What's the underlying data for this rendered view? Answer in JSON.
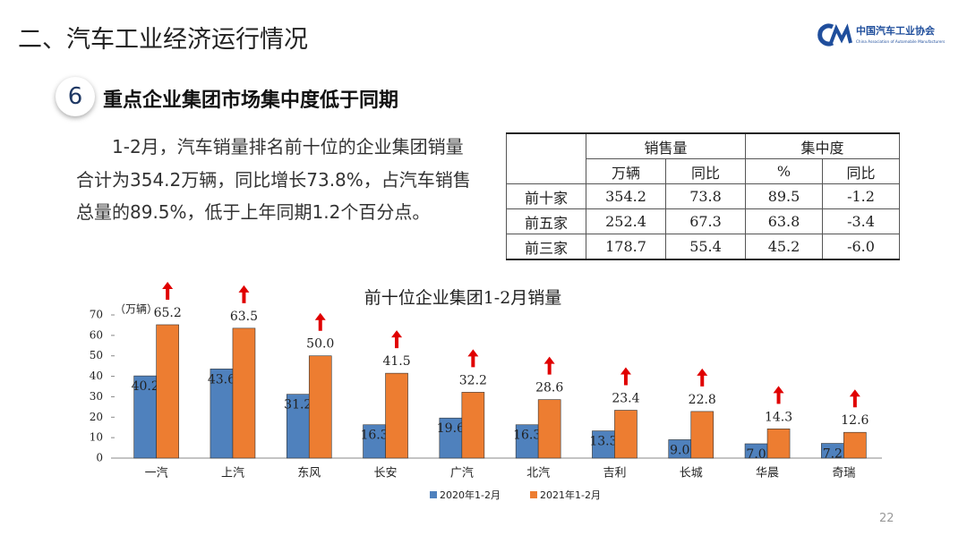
{
  "header": {
    "title": "二、汽车工业经济运行情况",
    "logo_name": "中国汽车工业协会",
    "logo_english": "China Association of Automobile Manufacturers"
  },
  "section": {
    "number": "6",
    "title": "重点企业集团市场集中度低于同期"
  },
  "paragraph": "1-2月，汽车销量排名前十位的企业集团销量合计为354.2万辆，同比增长73.8%，占汽车销售总量的89.5%，低于上年同期1.2个百分点。",
  "table": {
    "groups": [
      "销售量",
      "集中度"
    ],
    "subheaders": [
      "万辆",
      "同比",
      "%",
      "同比"
    ],
    "rows": [
      [
        "前十家",
        "354.2",
        "73.8",
        "89.5",
        "-1.2"
      ],
      [
        "前五家",
        "252.4",
        "67.3",
        "63.8",
        "-3.4"
      ],
      [
        "前三家",
        "178.7",
        "55.4",
        "45.2",
        "-6.0"
      ]
    ]
  },
  "chart_data": {
    "type": "bar",
    "title": "前十位企业集团1-2月销量",
    "y_label": "（万辆）",
    "categories": [
      "一汽",
      "上汽",
      "东风",
      "长安",
      "广汽",
      "北汽",
      "吉利",
      "长城",
      "华晨",
      "奇瑞"
    ],
    "series": [
      {
        "name": "2020年1-2月",
        "color": "#4f81bd",
        "values": [
          40.2,
          43.6,
          31.2,
          16.3,
          19.6,
          16.3,
          13.3,
          9.0,
          7.0,
          7.2
        ],
        "value_labels": [
          "40.2",
          "43.6",
          "31.2",
          "16.3",
          "19.6",
          "16.3",
          "13.3",
          "9.0",
          "7.0",
          "7.2"
        ]
      },
      {
        "name": "2021年1-2月",
        "color": "#ed7d31",
        "values": [
          65.2,
          63.5,
          50.0,
          41.5,
          32.2,
          28.6,
          23.4,
          22.8,
          14.3,
          12.6
        ],
        "value_labels": [
          "65.2",
          "63.5",
          "50.0",
          "41.5",
          "32.2",
          "28.6",
          "23.4",
          "22.8",
          "14.3",
          "12.6"
        ]
      }
    ],
    "ylim": [
      0,
      70
    ],
    "yticks": [
      0,
      10,
      20,
      30,
      40,
      50,
      60,
      70
    ],
    "grid": false,
    "legend": "bottom",
    "arrow_color": "#e00000"
  },
  "page_number": "22"
}
